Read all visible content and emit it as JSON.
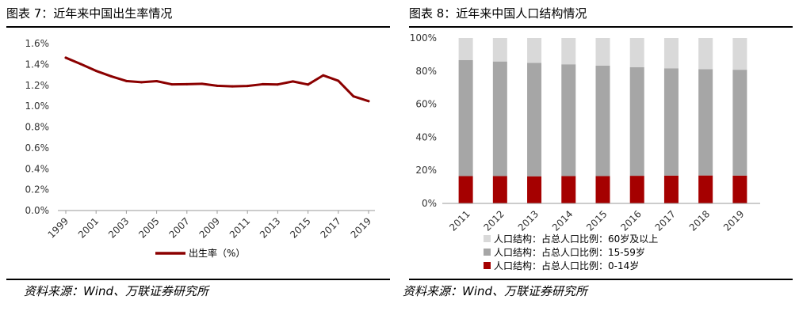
{
  "figures": [
    {
      "title": "图表 7：近年来中国出生率情况",
      "source": "资料来源：Wind、万联证券研究所",
      "chart_data": {
        "type": "line",
        "title": "",
        "xlabel": "",
        "ylabel": "",
        "x": [
          1999,
          2000,
          2001,
          2002,
          2003,
          2004,
          2005,
          2006,
          2007,
          2008,
          2009,
          2010,
          2011,
          2012,
          2013,
          2014,
          2015,
          2016,
          2017,
          2018,
          2019
        ],
        "x_ticks": [
          "1999",
          "2001",
          "2003",
          "2005",
          "2007",
          "2009",
          "2011",
          "2013",
          "2015",
          "2017",
          "2019"
        ],
        "series": [
          {
            "name": "出生率（%）",
            "color": "#8B0000",
            "values": [
              1.464,
              1.403,
              1.338,
              1.286,
              1.241,
              1.229,
              1.24,
              1.209,
              1.21,
              1.214,
              1.195,
              1.19,
              1.193,
              1.21,
              1.208,
              1.237,
              1.207,
              1.295,
              1.243,
              1.094,
              1.048
            ]
          }
        ],
        "y_ticks": [
          "0.0%",
          "0.2%",
          "0.4%",
          "0.6%",
          "0.8%",
          "1.0%",
          "1.2%",
          "1.4%",
          "1.6%"
        ],
        "ylim": [
          0,
          1.6
        ],
        "grid": false,
        "legend_position": "bottom"
      }
    },
    {
      "title": "图表 8：近年来中国人口结构情况",
      "source": "资料来源：Wind、万联证券研究所",
      "chart_data": {
        "type": "bar",
        "stacked": true,
        "title": "",
        "xlabel": "",
        "ylabel": "",
        "categories": [
          "2011",
          "2012",
          "2013",
          "2014",
          "2015",
          "2016",
          "2017",
          "2018",
          "2019"
        ],
        "series": [
          {
            "name": "人口结构：占总人口比例：0-14岁",
            "color": "#A50000",
            "values": [
              16.5,
              16.5,
              16.4,
              16.5,
              16.5,
              16.7,
              16.8,
              16.9,
              16.8
            ]
          },
          {
            "name": "人口结构：占总人口比例：15-59岁",
            "color": "#A6A6A6",
            "values": [
              70.1,
              69.3,
              68.6,
              67.6,
              66.8,
              65.6,
              64.9,
              64.3,
              64.0
            ]
          },
          {
            "name": "人口结构：占总人口比例：60岁及以上",
            "color": "#D9D9D9",
            "values": [
              13.4,
              14.2,
              15.0,
              15.9,
              16.7,
              17.7,
              18.3,
              18.8,
              19.2
            ]
          }
        ],
        "y_ticks": [
          "0%",
          "20%",
          "40%",
          "60%",
          "80%",
          "100%"
        ],
        "ylim": [
          0,
          100
        ],
        "grid": false,
        "legend_position": "bottom"
      }
    }
  ]
}
